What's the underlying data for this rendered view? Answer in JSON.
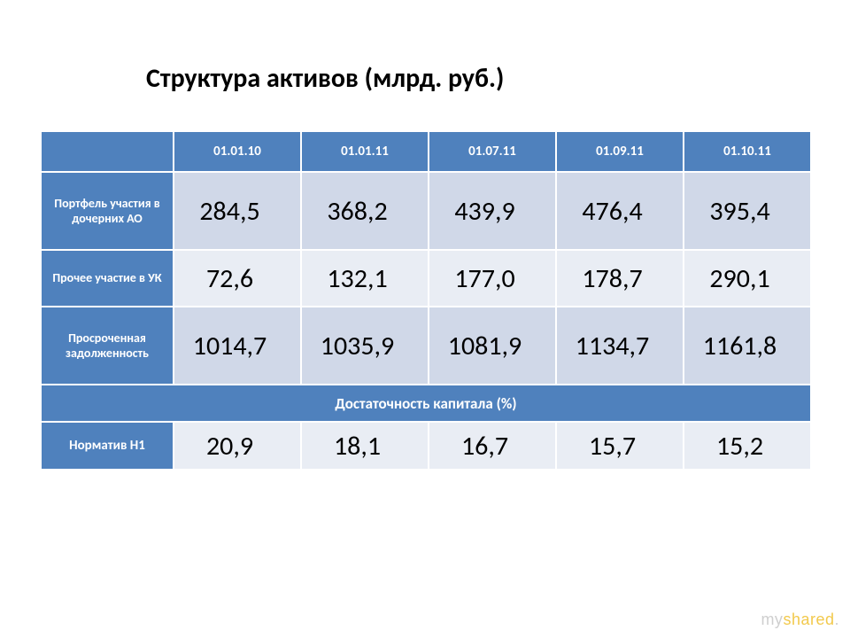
{
  "title": "Структура активов (млрд. руб.)",
  "table": {
    "columns": [
      "01.01.10",
      "01.01.11",
      "01.07.11",
      "01.09.11",
      "01.10.11"
    ],
    "rows": [
      {
        "label": "Портфель участия в дочерних АО",
        "values": [
          "284,5",
          "368,2",
          "439,9",
          "476,4",
          "395,4"
        ],
        "band": "light"
      },
      {
        "label": "Прочее участие в УК",
        "values": [
          "72,6",
          "132,1",
          "177,0",
          "178,7",
          "290,1"
        ],
        "band": "dark"
      },
      {
        "label": "Просроченная задолженность",
        "values": [
          "1014,7",
          "1035,9",
          "1081,9",
          "1134,7",
          "1161,8"
        ],
        "band": "light"
      }
    ],
    "section_label": "Достаточность капитала (%)",
    "n1": {
      "label": "Норматив Н1",
      "values": [
        "20,9",
        "18,1",
        "16,7",
        "15,7",
        "15,2"
      ]
    },
    "header_bg": "#4f81bd",
    "header_fg": "#ffffff",
    "band_light_bg": "#d0d8e8",
    "band_dark_bg": "#e9edf4",
    "data_font_size_pt": 30,
    "label_font_size_pt": 14,
    "header_font_size_pt": 15,
    "title_font_size_pt": 30,
    "border_color": "#ffffff"
  },
  "watermark": {
    "my": "my",
    "shared": "shared",
    "dot": "."
  }
}
